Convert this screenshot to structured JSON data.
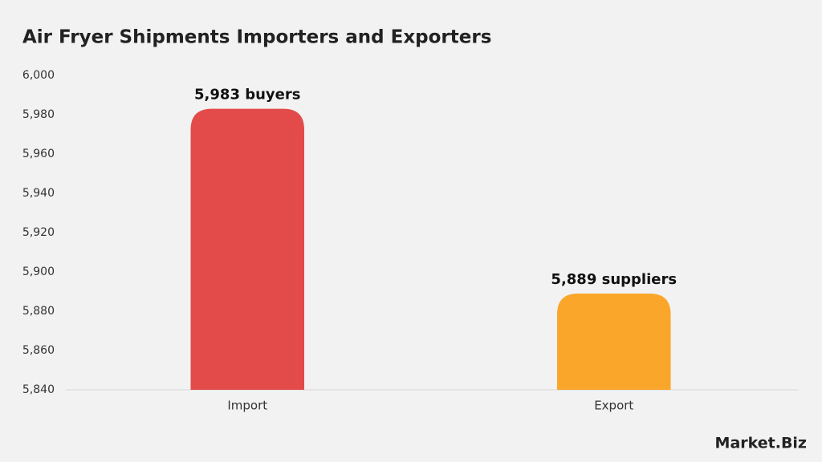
{
  "chart_data": {
    "type": "bar",
    "title": "Air Fryer Shipments Importers and Exporters",
    "categories": [
      "Import",
      "Export"
    ],
    "values": [
      5983,
      5889
    ],
    "value_labels": [
      "5,983 buyers",
      "5,889 suppliers"
    ],
    "colors": [
      "#e24b4a",
      "#f9a62b"
    ],
    "ylim": [
      5840,
      6000
    ],
    "yticks": [
      {
        "value": 5840,
        "label": "5,840"
      },
      {
        "value": 5860,
        "label": "5,860"
      },
      {
        "value": 5880,
        "label": "5,880"
      },
      {
        "value": 5900,
        "label": "5,900"
      },
      {
        "value": 5920,
        "label": "5,920"
      },
      {
        "value": 5940,
        "label": "5,940"
      },
      {
        "value": 5960,
        "label": "5,960"
      },
      {
        "value": 5980,
        "label": "5,980"
      },
      {
        "value": 6000,
        "label": "6,000"
      }
    ],
    "grid": false,
    "watermark": "Market.Biz"
  }
}
